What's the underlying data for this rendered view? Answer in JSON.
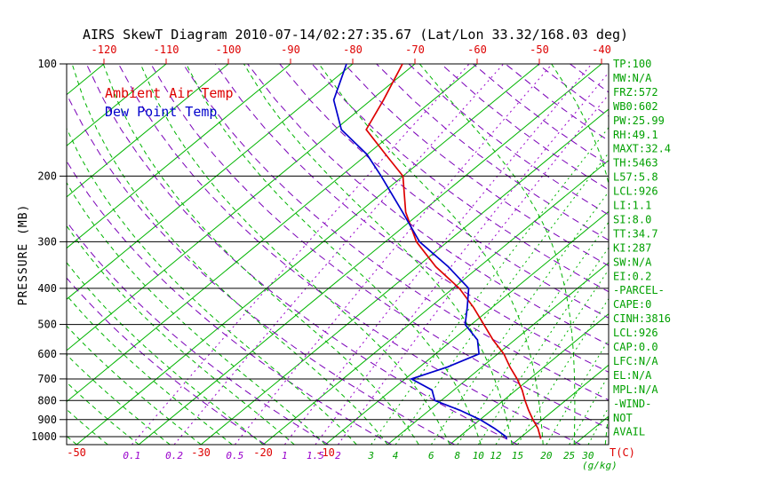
{
  "title": "AIRS SkewT Diagram 2010-07-14/02:27:35.67 (Lat/Lon 33.32/168.03 deg)",
  "legend": {
    "temp": "Ambient Air Temp",
    "dew": "Dew Point Temp"
  },
  "axes": {
    "y_label": "PRESSURE (MB)",
    "pressure_ticks": [
      100,
      200,
      300,
      400,
      500,
      600,
      700,
      800,
      900,
      1000
    ],
    "top_temp_ticks": [
      -120,
      -110,
      -100,
      -90,
      -80,
      -70,
      -60,
      -50,
      -40
    ],
    "bottom_temp_ticks": [
      -50,
      -30,
      -20,
      -10
    ],
    "x_unit_label": "T(C)",
    "mixing_unit_label": "(g/kg)"
  },
  "stats_panel": [
    "TP:100",
    "MW:N/A",
    "FRZ:572",
    "WB0:602",
    "PW:25.99",
    "RH:49.1",
    "MAXT:32.4",
    "TH:5463",
    "L57:5.8",
    "LCL:926",
    "LI:1.1",
    "SI:8.0",
    "TT:34.7",
    "KI:287",
    "SW:N/A",
    "EI:0.2",
    "-PARCEL-",
    "CAPE:0",
    "CINH:3816",
    "LCL:926",
    "CAP:0.0",
    "LFC:N/A",
    "EL:N/A",
    "MPL:N/A",
    "-WIND-",
    "NOT",
    "AVAIL"
  ],
  "colors": {
    "line_green": "#00b400",
    "label_green": "#00a000",
    "adiabat_violet": "#7a00b8",
    "mixing_purple": "#9900cc",
    "temp_red": "#dd0000",
    "dew_blue": "#0000cc",
    "axis_black": "#000000"
  },
  "chart_data": {
    "type": "line",
    "title": "AIRS SkewT Diagram 2010-07-14/02:27:35.67 (Lat/Lon 33.32/168.03 deg)",
    "xlabel": "T(C)",
    "ylabel": "PRESSURE (MB)",
    "y_axis": {
      "scale": "log",
      "range_mb": [
        100,
        1050
      ],
      "ticks": [
        100,
        200,
        300,
        400,
        500,
        600,
        700,
        800,
        900,
        1000
      ]
    },
    "x_axis": {
      "top_labels_c": [
        -120,
        -110,
        -100,
        -90,
        -80,
        -70,
        -60,
        -50,
        -40
      ],
      "bottom_labels_c": [
        -50,
        -30,
        -20,
        -10
      ],
      "skew_deg": 45
    },
    "series": [
      {
        "key": "temp",
        "name": "Ambient Air Temp",
        "color": "#dd0000",
        "points": [
          [
            1013,
            23.5
          ],
          [
            1000,
            23
          ],
          [
            950,
            21
          ],
          [
            900,
            18.5
          ],
          [
            850,
            16
          ],
          [
            800,
            13.5
          ],
          [
            750,
            11
          ],
          [
            700,
            8
          ],
          [
            650,
            4.5
          ],
          [
            600,
            1
          ],
          [
            550,
            -3.5
          ],
          [
            500,
            -8
          ],
          [
            450,
            -13
          ],
          [
            400,
            -19
          ],
          [
            350,
            -27
          ],
          [
            300,
            -35
          ],
          [
            250,
            -42.5
          ],
          [
            200,
            -50
          ],
          [
            175,
            -57
          ],
          [
            150,
            -65
          ],
          [
            125,
            -68
          ],
          [
            100,
            -72
          ]
        ]
      },
      {
        "key": "dew",
        "name": "Dew Point Temp",
        "color": "#0000cc",
        "points": [
          [
            1013,
            18
          ],
          [
            1000,
            17.5
          ],
          [
            950,
            14
          ],
          [
            900,
            10
          ],
          [
            850,
            5
          ],
          [
            800,
            -1
          ],
          [
            750,
            -3.5
          ],
          [
            700,
            -9
          ],
          [
            650,
            -5.5
          ],
          [
            600,
            -3
          ],
          [
            550,
            -6
          ],
          [
            500,
            -11
          ],
          [
            450,
            -14
          ],
          [
            400,
            -17.5
          ],
          [
            350,
            -25
          ],
          [
            300,
            -34.5
          ],
          [
            250,
            -43
          ],
          [
            200,
            -53.5
          ],
          [
            175,
            -60
          ],
          [
            150,
            -69
          ],
          [
            125,
            -76
          ],
          [
            100,
            -81
          ]
        ]
      }
    ],
    "grid": {
      "isotherms_c": [
        -120,
        -110,
        -100,
        -90,
        -80,
        -70,
        -60,
        -50,
        -40,
        -30,
        -20,
        -10,
        0,
        10,
        20,
        30,
        40
      ],
      "dry_adiabats_K": [
        250,
        260,
        270,
        280,
        290,
        300,
        310,
        320,
        330,
        340,
        350,
        360,
        370,
        380,
        390,
        400,
        410,
        420,
        430,
        440
      ],
      "moist_adiabats_start_c": [
        -60,
        -55,
        -50,
        -45,
        -40,
        -35,
        -30,
        -25,
        -20,
        -15,
        -10,
        -5,
        0,
        5,
        10,
        15,
        20,
        25,
        30,
        35,
        40
      ],
      "mixing_ratio_g_kg": [
        0.1,
        0.2,
        0.5,
        1,
        1.5,
        2,
        3,
        4,
        6,
        8,
        10,
        12,
        15,
        20,
        25,
        30
      ]
    }
  }
}
